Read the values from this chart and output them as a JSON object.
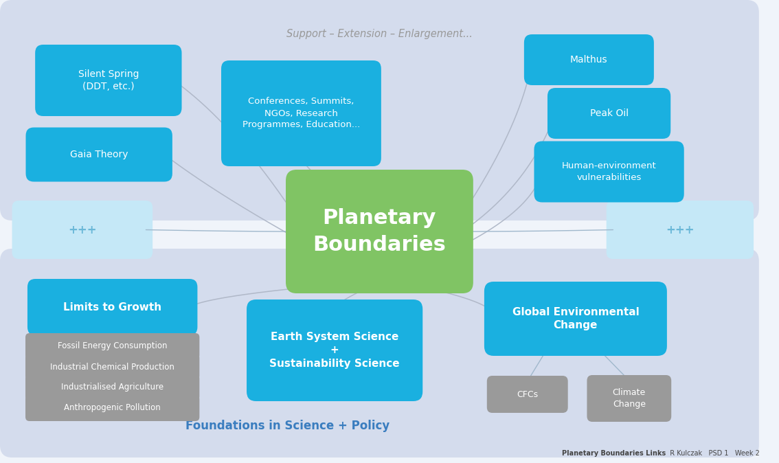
{
  "bg_color": "#f0f4fa",
  "top_panel_color": "#d4dced",
  "bottom_panel_color": "#d4dced",
  "mid_left_color": "#c5e8f7",
  "mid_right_color": "#c5e8f7",
  "cyan_box_color": "#1ab0e0",
  "gray_box_color": "#9a9a9a",
  "green_box_color": "#80c464",
  "title": "Planetary\nBoundaries",
  "footer_bold": "Planetary Boundaries Links",
  "footer_normal": "  R Kulczak   PSD 1   Week 2",
  "top_label": "Support – Extension – Enlargement...",
  "bottom_label": "Foundations in Science + Policy"
}
